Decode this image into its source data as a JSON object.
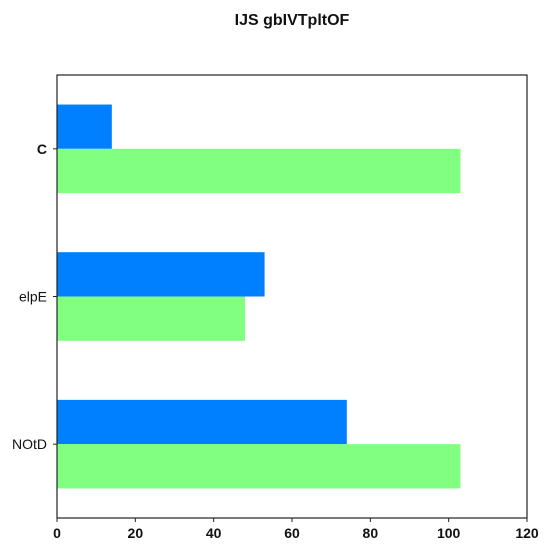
{
  "chart_data": {
    "type": "bar",
    "orientation": "horizontal",
    "title": "IJS gbIVTpltOF",
    "xlabel": "",
    "ylabel": "",
    "categories": [
      "C",
      "elpE",
      "NOtD"
    ],
    "series": [
      {
        "color": "#0080ff",
        "values": [
          14,
          53,
          74
        ]
      },
      {
        "color": "#80ff80",
        "values": [
          103,
          48,
          103
        ]
      }
    ],
    "xlim": [
      0,
      120
    ],
    "xticks": [
      0,
      20,
      40,
      60,
      80,
      100,
      120
    ],
    "grid": false,
    "legend": "none"
  }
}
